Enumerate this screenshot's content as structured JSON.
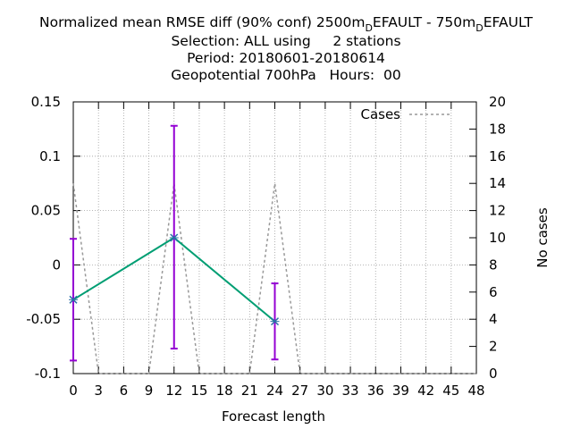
{
  "title": {
    "line1_parts": [
      "Normalized mean RMSE diff (90% conf) 2500m",
      "D",
      "EFAULT - 750m",
      "D",
      "EFAULT"
    ],
    "line2": "Selection: ALL using     2 stations",
    "line3": "Period: 20180601-20180614",
    "line4": "Geopotential 700hPa   Hours:  00"
  },
  "chart_data": {
    "type": "line",
    "xlabel": "Forecast length",
    "ylabel_right": "No cases",
    "ylabel_left": "",
    "xlim": [
      0,
      48
    ],
    "ylim": [
      -0.1,
      0.15
    ],
    "y2lim": [
      0,
      20
    ],
    "x_ticks": [
      "0",
      "3",
      "6",
      "9",
      "12",
      "15",
      "18",
      "21",
      "24",
      "27",
      "30",
      "33",
      "36",
      "39",
      "42",
      "45",
      "48"
    ],
    "y_ticks": [
      "-0.1",
      "-0.05",
      "0",
      "0.05",
      "0.1",
      "0.15"
    ],
    "y2_ticks": [
      "0",
      "2",
      "4",
      "6",
      "8",
      "10",
      "12",
      "14",
      "16",
      "18",
      "20"
    ],
    "grid": true,
    "legend_position": "top-right",
    "series": [
      {
        "type": "line-with-errorbars",
        "color": "#009e73",
        "errorbar_color": "#9400d3",
        "x": [
          0,
          12,
          24
        ],
        "y": [
          -0.032,
          0.025,
          -0.052
        ],
        "err_low": [
          -0.088,
          -0.077,
          -0.087
        ],
        "err_high": [
          0.024,
          0.128,
          -0.017
        ]
      },
      {
        "name": "Cases",
        "type": "dashed-line",
        "axis": "right",
        "color": "#999999",
        "x": [
          0,
          3,
          9,
          12,
          15,
          21,
          24,
          27,
          48
        ],
        "y": [
          14,
          0,
          0,
          14,
          0,
          0,
          14,
          0,
          0
        ]
      }
    ]
  }
}
